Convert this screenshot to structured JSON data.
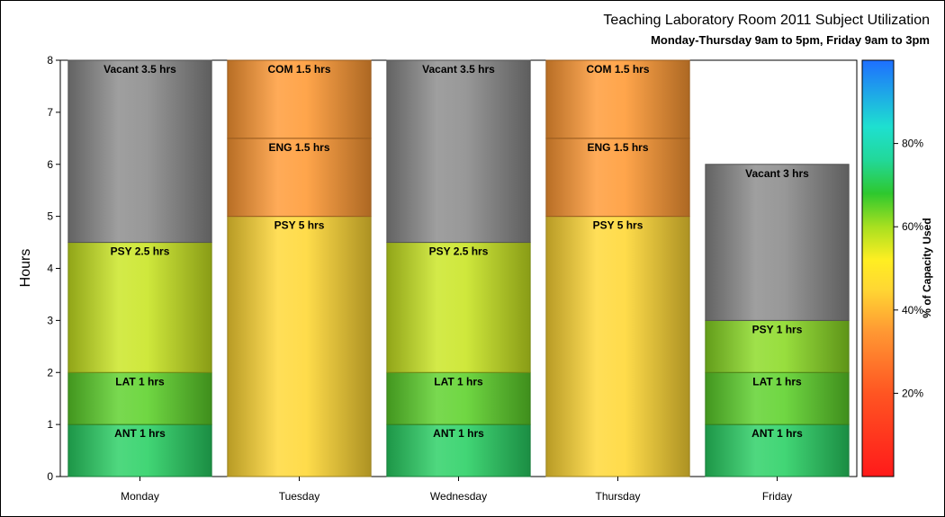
{
  "title": "Teaching Laboratory Room 2011 Subject Utilization",
  "subtitle": "Monday-Thursday 9am to 5pm, Friday 9am to 3pm",
  "chart_data": {
    "type": "bar",
    "stacked": true,
    "ylabel": "Hours",
    "ylim": [
      0,
      8
    ],
    "yticks": [
      0,
      1,
      2,
      3,
      4,
      5,
      6,
      7,
      8
    ],
    "categories": [
      "Monday",
      "Tuesday",
      "Wednesday",
      "Thursday",
      "Friday"
    ],
    "bars": [
      {
        "day": "Monday",
        "segments": [
          {
            "label": "ANT 1 hrs",
            "value": 1,
            "pct": 72
          },
          {
            "label": "LAT 1 hrs",
            "value": 1,
            "pct": 65
          },
          {
            "label": "PSY 2.5 hrs",
            "value": 2.5,
            "pct": 57
          },
          {
            "label": "Vacant 3.5 hrs",
            "value": 3.5,
            "vacant": true
          }
        ]
      },
      {
        "day": "Tuesday",
        "segments": [
          {
            "label": "PSY 5 hrs",
            "value": 5,
            "pct": 45
          },
          {
            "label": "ENG 1.5 hrs",
            "value": 1.5,
            "pct": 35
          },
          {
            "label": "COM 1.5 hrs",
            "value": 1.5,
            "pct": 35
          }
        ]
      },
      {
        "day": "Wednesday",
        "segments": [
          {
            "label": "ANT 1 hrs",
            "value": 1,
            "pct": 72
          },
          {
            "label": "LAT 1 hrs",
            "value": 1,
            "pct": 65
          },
          {
            "label": "PSY 2.5 hrs",
            "value": 2.5,
            "pct": 57
          },
          {
            "label": "Vacant 3.5 hrs",
            "value": 3.5,
            "vacant": true
          }
        ]
      },
      {
        "day": "Thursday",
        "segments": [
          {
            "label": "PSY 5 hrs",
            "value": 5,
            "pct": 45
          },
          {
            "label": "ENG 1.5 hrs",
            "value": 1.5,
            "pct": 35
          },
          {
            "label": "COM 1.5 hrs",
            "value": 1.5,
            "pct": 35
          }
        ]
      },
      {
        "day": "Friday",
        "segments": [
          {
            "label": "ANT 1 hrs",
            "value": 1,
            "pct": 72
          },
          {
            "label": "LAT 1 hrs",
            "value": 1,
            "pct": 65
          },
          {
            "label": "PSY 1 hrs",
            "value": 1,
            "pct": 62
          },
          {
            "label": "Vacant 3 hrs",
            "value": 3,
            "vacant": true
          }
        ]
      }
    ],
    "colorbar": {
      "label": "% of Capacity Used",
      "range": [
        0,
        100
      ],
      "ticks": [
        20,
        40,
        60,
        80
      ],
      "tick_labels": [
        "20%",
        "40%",
        "60%",
        "80%"
      ],
      "stops": [
        {
          "at": 0,
          "color": "#ff1a1a"
        },
        {
          "at": 0.2,
          "color": "#ff5522"
        },
        {
          "at": 0.35,
          "color": "#ff9933"
        },
        {
          "at": 0.45,
          "color": "#ffd733"
        },
        {
          "at": 0.52,
          "color": "#ffee22"
        },
        {
          "at": 0.6,
          "color": "#a8e020"
        },
        {
          "at": 0.68,
          "color": "#2ec82e"
        },
        {
          "at": 0.76,
          "color": "#22d899"
        },
        {
          "at": 0.84,
          "color": "#1ee0d0"
        },
        {
          "at": 1,
          "color": "#1e6fff"
        }
      ]
    },
    "vacant_color": "#8a8a8a",
    "grid": false,
    "legend": "colorbar-right"
  }
}
